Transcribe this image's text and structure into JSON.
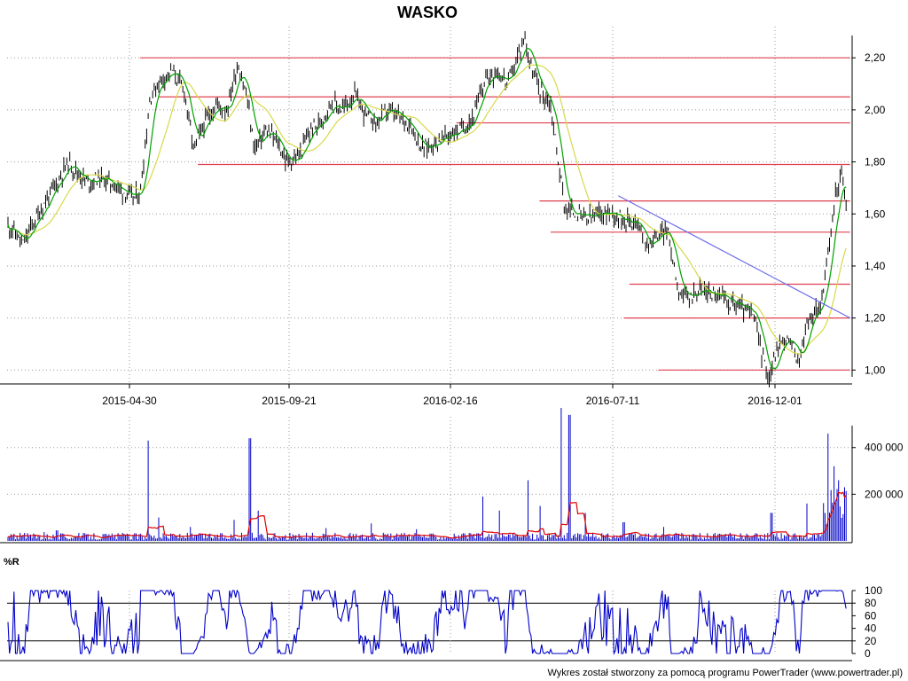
{
  "chart_data": [
    {
      "type": "line",
      "title": "WASKO",
      "x_tick_labels": [
        "2015-04-30",
        "2015-09-21",
        "2016-02-16",
        "2016-07-11",
        "2016-12-01"
      ],
      "y_tick_labels": [
        "1,00",
        "1,20",
        "1,40",
        "1,60",
        "1,80",
        "2,00",
        "2,20"
      ],
      "ylim": [
        0.95,
        2.32
      ],
      "grid": true,
      "colors": {
        "price": "#000000",
        "ma_fast": "#00a000",
        "ma_slow": "#d8d84a",
        "levels": "#e04050",
        "trendline": "#6a6ae8"
      },
      "price_points": [
        [
          "2015-01-05",
          1.55
        ],
        [
          "2015-01-15",
          1.48
        ],
        [
          "2015-01-25",
          1.57
        ],
        [
          "2015-02-05",
          1.65
        ],
        [
          "2015-02-15",
          1.72
        ],
        [
          "2015-02-25",
          1.8
        ],
        [
          "2015-03-05",
          1.76
        ],
        [
          "2015-03-15",
          1.72
        ],
        [
          "2015-03-25",
          1.74
        ],
        [
          "2015-04-05",
          1.72
        ],
        [
          "2015-04-15",
          1.69
        ],
        [
          "2015-04-25",
          1.66
        ],
        [
          "2015-05-01",
          1.68
        ],
        [
          "2015-05-10",
          2.05
        ],
        [
          "2015-05-20",
          2.12
        ],
        [
          "2015-05-30",
          2.15
        ],
        [
          "2015-06-10",
          2.07
        ],
        [
          "2015-06-18",
          1.85
        ],
        [
          "2015-06-28",
          1.95
        ],
        [
          "2015-07-08",
          2.02
        ],
        [
          "2015-07-18",
          2.0
        ],
        [
          "2015-07-28",
          2.18
        ],
        [
          "2015-08-05",
          2.05
        ],
        [
          "2015-08-12",
          1.85
        ],
        [
          "2015-08-22",
          1.92
        ],
        [
          "2015-09-01",
          1.88
        ],
        [
          "2015-09-10",
          1.8
        ],
        [
          "2015-09-21",
          1.82
        ],
        [
          "2015-10-01",
          1.92
        ],
        [
          "2015-10-10",
          1.95
        ],
        [
          "2015-10-20",
          2.03
        ],
        [
          "2015-10-30",
          2.0
        ],
        [
          "2015-11-10",
          2.06
        ],
        [
          "2015-11-20",
          1.98
        ],
        [
          "2015-11-30",
          1.95
        ],
        [
          "2015-12-10",
          2.0
        ],
        [
          "2015-12-20",
          1.97
        ],
        [
          "2015-12-30",
          1.95
        ],
        [
          "2016-01-10",
          1.85
        ],
        [
          "2016-01-20",
          1.87
        ],
        [
          "2016-02-01",
          1.9
        ],
        [
          "2016-02-16",
          1.93
        ],
        [
          "2016-02-26",
          1.98
        ],
        [
          "2016-03-07",
          2.12
        ],
        [
          "2016-03-17",
          2.15
        ],
        [
          "2016-03-27",
          2.1
        ],
        [
          "2016-04-05",
          2.2
        ],
        [
          "2016-04-12",
          2.28
        ],
        [
          "2016-04-18",
          2.15
        ],
        [
          "2016-04-25",
          2.08
        ],
        [
          "2016-05-05",
          2.02
        ],
        [
          "2016-05-12",
          1.8
        ],
        [
          "2016-05-18",
          1.62
        ],
        [
          "2016-05-28",
          1.6
        ],
        [
          "2016-06-08",
          1.58
        ],
        [
          "2016-06-18",
          1.6
        ],
        [
          "2016-06-28",
          1.61
        ],
        [
          "2016-07-11",
          1.58
        ],
        [
          "2016-07-21",
          1.57
        ],
        [
          "2016-07-31",
          1.48
        ],
        [
          "2016-08-10",
          1.52
        ],
        [
          "2016-08-18",
          1.54
        ],
        [
          "2016-08-28",
          1.32
        ],
        [
          "2016-09-05",
          1.27
        ],
        [
          "2016-09-15",
          1.31
        ],
        [
          "2016-09-25",
          1.3
        ],
        [
          "2016-10-05",
          1.28
        ],
        [
          "2016-10-15",
          1.26
        ],
        [
          "2016-10-25",
          1.24
        ],
        [
          "2016-11-05",
          1.2
        ],
        [
          "2016-11-12",
          1.05
        ],
        [
          "2016-11-18",
          0.97
        ],
        [
          "2016-11-25",
          1.08
        ],
        [
          "2016-12-01",
          1.12
        ],
        [
          "2016-12-08",
          1.1
        ],
        [
          "2016-12-15",
          1.03
        ],
        [
          "2016-12-22",
          1.18
        ],
        [
          "2016-12-29",
          1.22
        ],
        [
          "2017-01-05",
          1.28
        ],
        [
          "2017-01-12",
          1.5
        ],
        [
          "2017-01-17",
          1.68
        ],
        [
          "2017-01-22",
          1.76
        ],
        [
          "2017-01-27",
          1.62
        ]
      ],
      "support_resistance": [
        {
          "value": 2.2,
          "from": "2015-05-01",
          "to": "2017-01-30"
        },
        {
          "value": 2.05,
          "from": "2015-05-18",
          "to": "2017-01-30"
        },
        {
          "value": 1.95,
          "from": "2016-02-10",
          "to": "2017-01-30"
        },
        {
          "value": 1.79,
          "from": "2015-06-22",
          "to": "2017-01-30"
        },
        {
          "value": 1.65,
          "from": "2016-04-25",
          "to": "2017-01-30"
        },
        {
          "value": 1.53,
          "from": "2016-05-05",
          "to": "2017-01-30"
        },
        {
          "value": 1.33,
          "from": "2016-07-15",
          "to": "2017-01-30"
        },
        {
          "value": 1.2,
          "from": "2016-07-10",
          "to": "2017-01-30"
        },
        {
          "value": 1.0,
          "from": "2016-08-10",
          "to": "2017-01-30"
        }
      ],
      "trendline": {
        "from": [
          "2016-07-05",
          1.67
        ],
        "to": [
          "2017-01-30",
          1.2
        ]
      }
    },
    {
      "type": "bar",
      "y_tick_labels": [
        "200 000",
        "400 000"
      ],
      "ylim": [
        0,
        570000
      ],
      "colors": {
        "bars": "#0000c8",
        "avg": "#e00000"
      },
      "spikes": [
        [
          "2015-02-03",
          38000
        ],
        [
          "2015-02-15",
          45000
        ],
        [
          "2015-05-08",
          430000
        ],
        [
          "2015-05-18",
          100000
        ],
        [
          "2015-06-15",
          60000
        ],
        [
          "2015-07-25",
          90000
        ],
        [
          "2015-08-08",
          440000
        ],
        [
          "2015-08-15",
          130000
        ],
        [
          "2015-10-15",
          55000
        ],
        [
          "2015-11-25",
          75000
        ],
        [
          "2016-01-05",
          50000
        ],
        [
          "2016-03-05",
          190000
        ],
        [
          "2016-03-20",
          130000
        ],
        [
          "2016-04-15",
          260000
        ],
        [
          "2016-04-25",
          150000
        ],
        [
          "2016-05-14",
          570000
        ],
        [
          "2016-05-22",
          540000
        ],
        [
          "2016-06-05",
          120000
        ],
        [
          "2016-07-10",
          80000
        ],
        [
          "2016-08-15",
          60000
        ],
        [
          "2016-11-20",
          120000
        ],
        [
          "2016-12-22",
          160000
        ],
        [
          "2017-01-10",
          460000
        ],
        [
          "2017-01-15",
          320000
        ],
        [
          "2017-01-20",
          260000
        ]
      ]
    },
    {
      "type": "line",
      "title": "%R",
      "y_tick_labels": [
        "0",
        "20",
        "40",
        "60",
        "80",
        "100"
      ],
      "ylim": [
        0,
        100
      ],
      "colors": {
        "line": "#0000c8"
      }
    }
  ],
  "footer": "Wykres został stworzony za pomocą programu PowerTrader (www.powertrader.pl)"
}
